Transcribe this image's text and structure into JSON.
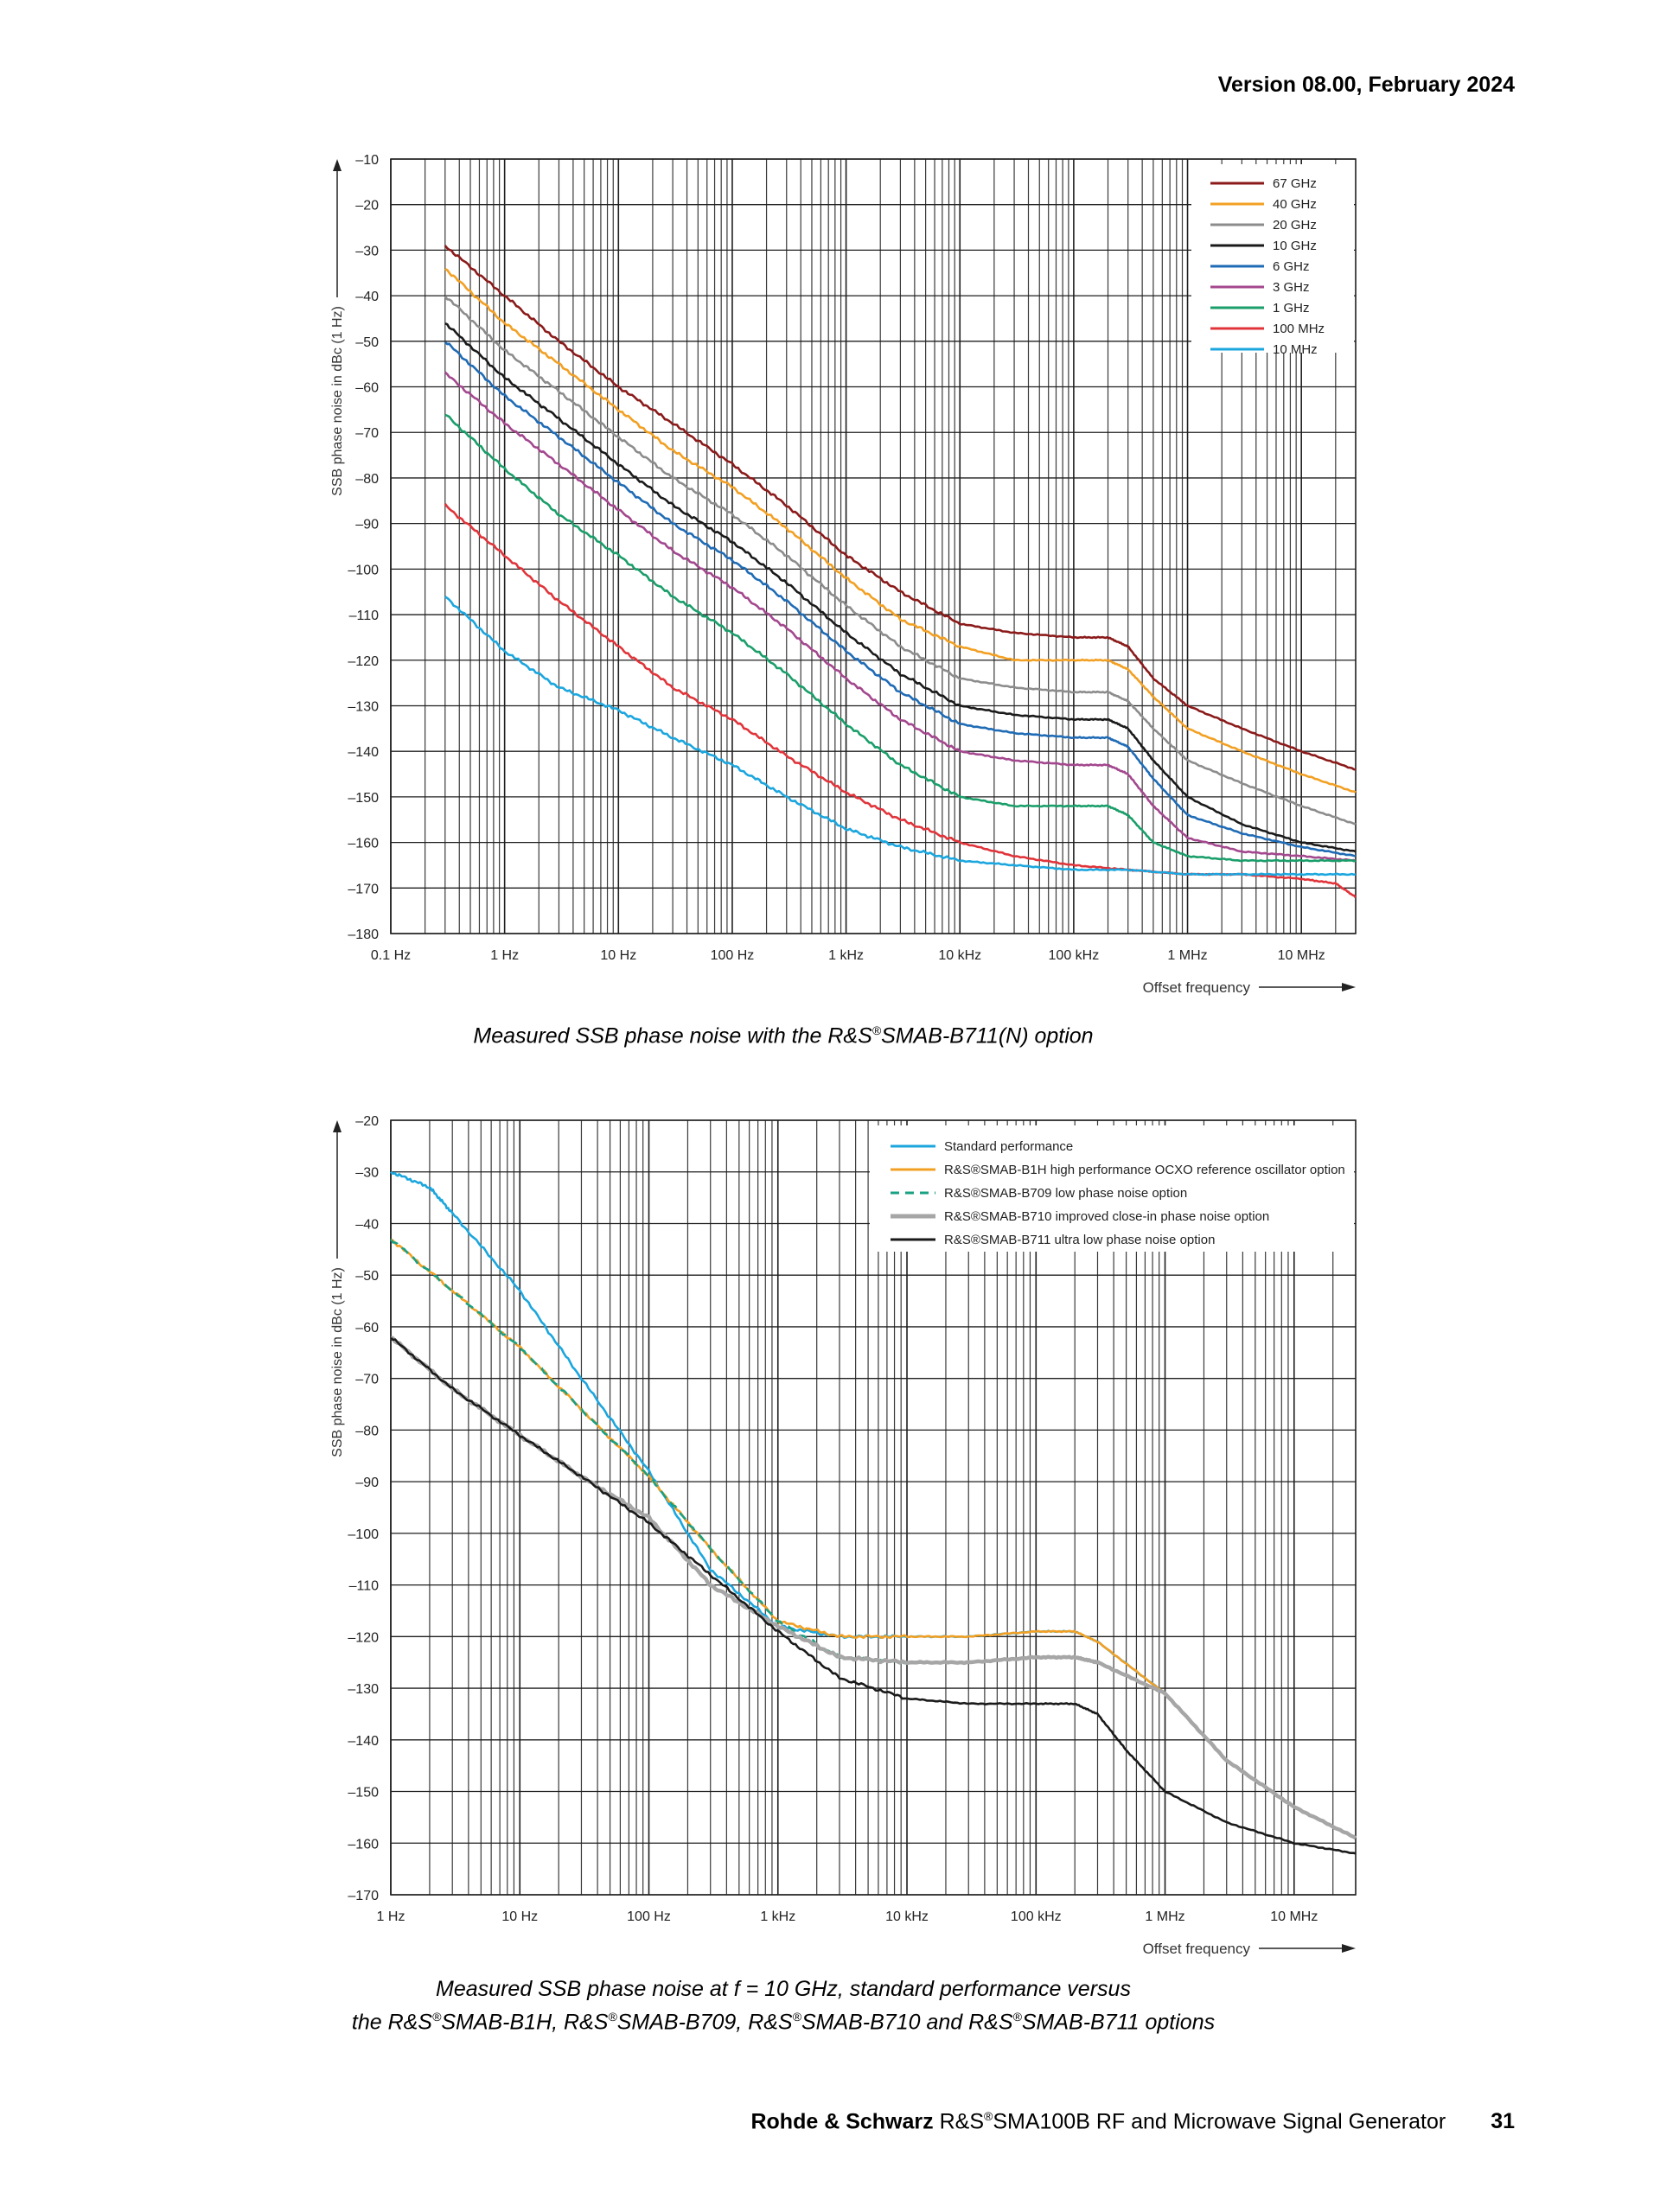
{
  "header": {
    "version": "Version 08.00, February 2024"
  },
  "captions": {
    "c1": {
      "pre": "Measured SSB phase noise with the R&S",
      "reg": "®",
      "post": "SMAB-B711(N) option"
    },
    "c2": {
      "line1": "Measured SSB phase noise at f = 10 GHz, standard performance versus",
      "p1": "the R&S",
      "p2": "SMAB-B1H, R&S",
      "p3": "SMAB-B709, R&S",
      "p4": "SMAB-B710 and R&S",
      "p5": "SMAB-B711 options",
      "reg": "®"
    }
  },
  "footer": {
    "brand": "Rohde & Schwarz",
    "pre": " R&S",
    "reg": "®",
    "post": "SMA100B RF and Microwave Signal Generator",
    "page": "31"
  },
  "chart_data": [
    {
      "type": "line",
      "title": "",
      "xlabel": "Offset frequency",
      "ylabel": "SSB phase noise in dBc (1 Hz)",
      "xscale": "log",
      "xlim": [
        0.1,
        30000000
      ],
      "ylim": [
        -180,
        -10
      ],
      "xticks": [
        0.1,
        1,
        10,
        100,
        1000,
        10000,
        100000,
        1000000,
        10000000
      ],
      "xtick_labels": [
        "0.1 Hz",
        "1 Hz",
        "10 Hz",
        "100 Hz",
        "1 kHz",
        "10 kHz",
        "100 kHz",
        "1 MHz",
        "10 MHz"
      ],
      "yticks": [
        -10,
        -20,
        -30,
        -40,
        -50,
        -60,
        -70,
        -80,
        -90,
        -100,
        -110,
        -120,
        -130,
        -140,
        -150,
        -160,
        -170,
        -180
      ],
      "ytick_labels": [
        "–10",
        "–20",
        "–30",
        "–40",
        "–50",
        "–60",
        "–70",
        "–80",
        "–90",
        "–100",
        "–110",
        "–120",
        "–130",
        "–140",
        "–150",
        "–160",
        "–170",
        "–180"
      ],
      "grid": true,
      "legend_position": "top-right",
      "series": [
        {
          "name": "67 GHz",
          "color": "#8B1A1A",
          "x": [
            0.3,
            1,
            3,
            10,
            30,
            100,
            300,
            1000,
            3000,
            10000,
            30000,
            100000,
            200000,
            300000,
            500000,
            1000000,
            3000000,
            10000000,
            30000000
          ],
          "y": [
            -29,
            -40,
            -50,
            -60,
            -68,
            -77,
            -86,
            -97,
            -105,
            -112,
            -114,
            -115,
            -115,
            -117,
            -124,
            -130,
            -135,
            -140,
            -144
          ]
        },
        {
          "name": "40 GHz",
          "color": "#F2A023",
          "x": [
            0.3,
            1,
            3,
            10,
            30,
            100,
            300,
            1000,
            3000,
            10000,
            30000,
            100000,
            200000,
            300000,
            500000,
            1000000,
            3000000,
            10000000,
            30000000
          ],
          "y": [
            -34,
            -46,
            -55,
            -65,
            -74,
            -82,
            -91,
            -102,
            -111,
            -117,
            -120,
            -120,
            -120,
            -122,
            -128,
            -135,
            -140,
            -145,
            -149
          ]
        },
        {
          "name": "20 GHz",
          "color": "#8C8C8C",
          "x": [
            0.3,
            1,
            3,
            10,
            30,
            100,
            300,
            1000,
            3000,
            10000,
            30000,
            100000,
            200000,
            300000,
            500000,
            1000000,
            3000000,
            10000000,
            30000000
          ],
          "y": [
            -40,
            -52,
            -61,
            -71,
            -80,
            -88,
            -97,
            -108,
            -117,
            -124,
            -126,
            -127,
            -127,
            -129,
            -135,
            -142,
            -147,
            -152,
            -156
          ]
        },
        {
          "name": "10 GHz",
          "color": "#1A1A1A",
          "x": [
            0.3,
            1,
            3,
            10,
            30,
            100,
            300,
            1000,
            3000,
            10000,
            30000,
            100000,
            200000,
            300000,
            500000,
            1000000,
            3000000,
            10000000,
            30000000
          ],
          "y": [
            -46,
            -58,
            -67,
            -77,
            -86,
            -94,
            -103,
            -114,
            -123,
            -130,
            -132,
            -133,
            -133,
            -135,
            -142,
            -150,
            -156,
            -160,
            -162
          ]
        },
        {
          "name": "6 GHz",
          "color": "#1F6BB5",
          "x": [
            0.3,
            1,
            3,
            10,
            30,
            100,
            300,
            1000,
            3000,
            10000,
            30000,
            100000,
            200000,
            300000,
            500000,
            1000000,
            3000000,
            10000000,
            30000000
          ],
          "y": [
            -50,
            -62,
            -71,
            -81,
            -90,
            -98,
            -107,
            -118,
            -127,
            -134,
            -136,
            -137,
            -137,
            -139,
            -146,
            -154,
            -158,
            -161,
            -163
          ]
        },
        {
          "name": "3 GHz",
          "color": "#A3478E",
          "x": [
            0.3,
            1,
            3,
            10,
            30,
            100,
            300,
            1000,
            3000,
            10000,
            30000,
            100000,
            200000,
            300000,
            500000,
            1000000,
            3000000,
            10000000,
            30000000
          ],
          "y": [
            -57,
            -68,
            -77,
            -87,
            -96,
            -104,
            -113,
            -124,
            -133,
            -140,
            -142,
            -143,
            -143,
            -145,
            -152,
            -159,
            -162,
            -163,
            -164
          ]
        },
        {
          "name": "1 GHz",
          "color": "#1A9E6A",
          "x": [
            0.3,
            1,
            3,
            10,
            30,
            100,
            300,
            1000,
            3000,
            10000,
            30000,
            100000,
            200000,
            300000,
            500000,
            1000000,
            3000000,
            10000000,
            30000000
          ],
          "y": [
            -66,
            -78,
            -88,
            -97,
            -106,
            -114,
            -123,
            -134,
            -143,
            -150,
            -152,
            -152,
            -152,
            -154,
            -160,
            -163,
            -164,
            -164,
            -164
          ]
        },
        {
          "name": "100 MHz",
          "color": "#E0343A",
          "x": [
            0.3,
            1,
            3,
            10,
            30,
            100,
            300,
            1000,
            3000,
            10000,
            30000,
            100000,
            300000,
            1000000,
            3000000,
            10000000,
            20000000,
            30000000
          ],
          "y": [
            -86,
            -97,
            -107,
            -117,
            -126,
            -133,
            -141,
            -149,
            -155,
            -160,
            -163,
            -165,
            -166,
            -167,
            -167,
            -168,
            -169,
            -172
          ]
        },
        {
          "name": "10 MHz",
          "color": "#1BA6DE",
          "x": [
            0.3,
            1,
            3,
            10,
            30,
            100,
            300,
            1000,
            3000,
            10000,
            30000,
            100000,
            300000,
            1000000,
            3000000,
            10000000,
            30000000
          ],
          "y": [
            -106,
            -118,
            -126,
            -131,
            -137,
            -143,
            -150,
            -157,
            -161,
            -164,
            -165,
            -166,
            -166,
            -167,
            -167,
            -167,
            -167
          ]
        }
      ]
    },
    {
      "type": "line",
      "title": "",
      "xlabel": "Offset frequency",
      "ylabel": "SSB phase noise in dBc (1 Hz)",
      "xscale": "log",
      "xlim": [
        1,
        30000000
      ],
      "ylim": [
        -170,
        -20
      ],
      "xticks": [
        1,
        10,
        100,
        1000,
        10000,
        100000,
        1000000,
        10000000
      ],
      "xtick_labels": [
        "1 Hz",
        "10 Hz",
        "100 Hz",
        "1 kHz",
        "10 kHz",
        "100 kHz",
        "1 MHz",
        "10 MHz"
      ],
      "yticks": [
        -20,
        -30,
        -40,
        -50,
        -60,
        -70,
        -80,
        -90,
        -100,
        -110,
        -120,
        -130,
        -140,
        -150,
        -160,
        -170
      ],
      "ytick_labels": [
        "–20",
        "–30",
        "–40",
        "–50",
        "–60",
        "–70",
        "–80",
        "–90",
        "–100",
        "–110",
        "–120",
        "–130",
        "–140",
        "–150",
        "–160",
        "–170"
      ],
      "grid": true,
      "legend_position": "top-right",
      "series": [
        {
          "name": "Standard performance",
          "color": "#1BA6DE",
          "dash": false,
          "x": [
            1,
            2,
            3,
            10,
            30,
            100,
            300,
            1000,
            3000,
            10000,
            30000,
            100000,
            200000,
            300000,
            1000000,
            3000000,
            10000000,
            30000000
          ],
          "y": [
            -30,
            -33,
            -38,
            -53,
            -70,
            -88,
            -107,
            -118,
            -120,
            -120,
            -120,
            -119,
            -119,
            -121,
            -131,
            -144,
            -153,
            -159
          ]
        },
        {
          "name": "R&S®SMAB-B1H  high performance OCXO reference oscillator option",
          "color": "#F2A023",
          "dash": false,
          "x": [
            1,
            3,
            10,
            30,
            100,
            300,
            1000,
            3000,
            10000,
            30000,
            100000,
            200000,
            300000,
            1000000,
            3000000,
            10000000,
            30000000
          ],
          "y": [
            -43,
            -53,
            -64,
            -76,
            -89,
            -103,
            -117,
            -120,
            -120,
            -120,
            -119,
            -119,
            -121,
            -131,
            -144,
            -153,
            -159
          ]
        },
        {
          "name": "R&S®SMAB-B709 low phase noise option",
          "color": "#1AA082",
          "dash": true,
          "x": [
            1,
            3,
            10,
            30,
            100,
            300,
            1000,
            3000,
            10000,
            30000,
            100000,
            200000,
            300000,
            1000000,
            3000000,
            10000000,
            30000000
          ],
          "y": [
            -43,
            -53,
            -64,
            -76,
            -89,
            -103,
            -117,
            -124,
            -125,
            -125,
            -124,
            -124,
            -125,
            -131,
            -144,
            -153,
            -159
          ]
        },
        {
          "name": "R&S®SMAB-B710 improved close-in phase noise option",
          "color": "#A6A6A6",
          "dash": false,
          "x": [
            1,
            3,
            10,
            30,
            100,
            300,
            1000,
            3000,
            10000,
            30000,
            100000,
            200000,
            300000,
            1000000,
            3000000,
            10000000,
            30000000
          ],
          "y": [
            -62,
            -72,
            -81,
            -89,
            -97,
            -110,
            -118,
            -124,
            -125,
            -125,
            -124,
            -124,
            -125,
            -131,
            -144,
            -153,
            -159
          ]
        },
        {
          "name": "R&S®SMAB-B711 ultra low phase noise option",
          "color": "#1A1A1A",
          "dash": false,
          "x": [
            1,
            3,
            10,
            30,
            100,
            300,
            1000,
            3000,
            10000,
            30000,
            100000,
            200000,
            300000,
            500000,
            1000000,
            3000000,
            10000000,
            30000000
          ],
          "y": [
            -62,
            -72,
            -81,
            -89,
            -98,
            -108,
            -119,
            -128,
            -132,
            -133,
            -133,
            -133,
            -135,
            -142,
            -150,
            -156,
            -160,
            -162
          ]
        }
      ]
    }
  ]
}
